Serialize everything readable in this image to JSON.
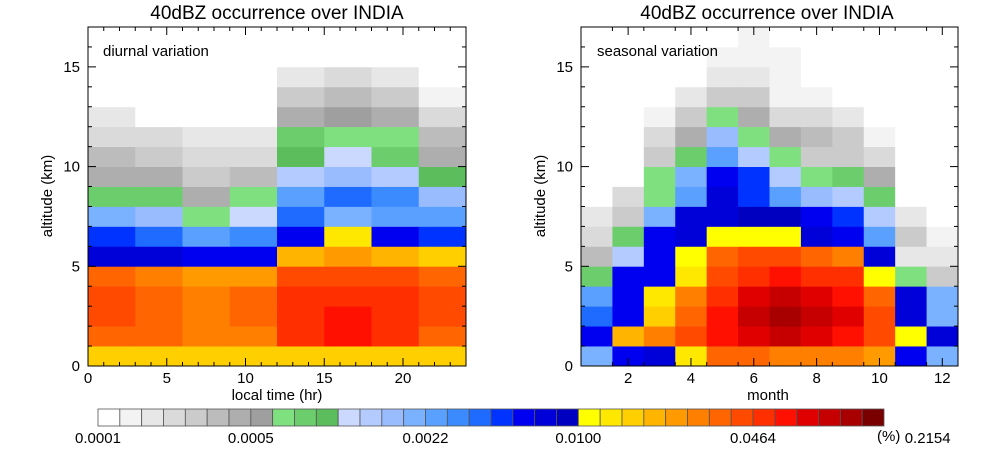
{
  "colorbar": {
    "colors": [
      "#ffffff",
      "#f3f3f3",
      "#e7e7e7",
      "#dadada",
      "#cbcbcb",
      "#bcbcbc",
      "#aeaeae",
      "#9f9f9f",
      "#7fe07f",
      "#6ccd6c",
      "#5cbd5c",
      "#ccd9ff",
      "#b3cbff",
      "#99bbff",
      "#7ab2ff",
      "#5aa0ff",
      "#3b8bff",
      "#1f6bff",
      "#0033ff",
      "#0000f0",
      "#0000d8",
      "#0000c0",
      "#ffff00",
      "#ffe800",
      "#ffcf00",
      "#ffb400",
      "#ff9a00",
      "#ff7f00",
      "#ff6500",
      "#ff4a00",
      "#ff2f00",
      "#ff1000",
      "#e10000",
      "#c60000",
      "#a80000",
      "#7a0000"
    ],
    "tick_labels": [
      "0.0001",
      "0.0005",
      "0.0022",
      "0.0100",
      "0.0464",
      "0.2154"
    ],
    "tick_indices": [
      0,
      7,
      15,
      22,
      30,
      38
    ],
    "unit": "(%)"
  },
  "chart_data": [
    {
      "type": "heatmap",
      "title": "40dBZ occurrence over INDIA",
      "annotation": "diurnal variation",
      "xlabel": "local time (hr)",
      "ylabel": "altitude (km)",
      "xlim": [
        0,
        24
      ],
      "ylim": [
        0,
        17
      ],
      "xticks": [
        0,
        5,
        10,
        15,
        20
      ],
      "yticks": [
        0,
        5,
        10,
        15
      ],
      "x_edges": [
        0,
        3,
        6,
        9,
        12,
        15,
        18,
        21,
        24
      ],
      "y_edges": [
        0,
        1,
        2,
        3,
        4,
        5,
        6,
        7,
        8,
        9,
        10,
        11,
        12,
        13,
        14,
        15,
        16,
        17
      ],
      "color_index": [
        [
          24,
          24,
          24,
          24,
          24,
          24,
          24,
          24
        ],
        [
          28,
          28,
          27,
          27,
          30,
          31,
          30,
          28
        ],
        [
          29,
          28,
          27,
          28,
          30,
          31,
          30,
          29
        ],
        [
          29,
          28,
          27,
          28,
          30,
          30,
          30,
          29
        ],
        [
          28,
          27,
          26,
          26,
          29,
          29,
          29,
          28
        ],
        [
          20,
          20,
          19,
          19,
          25,
          26,
          25,
          24
        ],
        [
          18,
          17,
          15,
          16,
          19,
          23,
          19,
          18
        ],
        [
          14,
          13,
          8,
          11,
          17,
          14,
          15,
          15
        ],
        [
          9,
          9,
          6,
          8,
          15,
          17,
          16,
          13
        ],
        [
          6,
          6,
          4,
          5,
          12,
          13,
          12,
          10
        ],
        [
          5,
          4,
          3,
          3,
          10,
          11,
          9,
          6
        ],
        [
          3,
          3,
          2,
          2,
          9,
          8,
          8,
          5
        ],
        [
          2,
          0,
          0,
          0,
          6,
          7,
          6,
          3
        ],
        [
          0,
          0,
          0,
          0,
          4,
          5,
          4,
          1
        ],
        [
          0,
          0,
          0,
          0,
          2,
          3,
          2,
          0
        ],
        [
          0,
          0,
          0,
          0,
          0,
          0,
          0,
          0
        ],
        [
          0,
          0,
          0,
          0,
          0,
          0,
          0,
          0
        ]
      ]
    },
    {
      "type": "heatmap",
      "title": "40dBZ occurrence over INDIA",
      "annotation": "seasonal variation",
      "xlabel": "month",
      "ylabel": "altitude (km)",
      "xlim": [
        0.5,
        12.5
      ],
      "ylim": [
        0,
        17
      ],
      "xticks": [
        2,
        4,
        6,
        8,
        10,
        12
      ],
      "yticks": [
        0,
        5,
        10,
        15
      ],
      "x_edges": [
        0.5,
        1.5,
        2.5,
        3.5,
        4.5,
        5.5,
        6.5,
        7.5,
        8.5,
        9.5,
        10.5,
        11.5,
        12.5
      ],
      "y_edges": [
        0,
        1,
        2,
        3,
        4,
        5,
        6,
        7,
        8,
        9,
        10,
        11,
        12,
        13,
        14,
        15,
        16,
        17
      ],
      "color_index": [
        [
          14,
          19,
          20,
          23,
          28,
          28,
          27,
          27,
          27,
          26,
          19,
          14
        ],
        [
          19,
          25,
          27,
          29,
          31,
          32,
          33,
          32,
          31,
          29,
          22,
          20
        ],
        [
          17,
          19,
          24,
          28,
          31,
          33,
          34,
          33,
          32,
          29,
          20,
          14
        ],
        [
          15,
          19,
          23,
          27,
          30,
          32,
          33,
          32,
          31,
          28,
          20,
          14
        ],
        [
          9,
          19,
          19,
          23,
          29,
          30,
          31,
          30,
          30,
          22,
          8,
          4
        ],
        [
          5,
          12,
          19,
          22,
          28,
          29,
          29,
          28,
          27,
          20,
          2,
          2
        ],
        [
          3,
          9,
          19,
          20,
          22,
          22,
          22,
          20,
          19,
          15,
          4,
          1
        ],
        [
          2,
          4,
          14,
          20,
          20,
          21,
          21,
          19,
          18,
          12,
          2,
          0
        ],
        [
          0,
          3,
          8,
          15,
          20,
          18,
          15,
          13,
          12,
          9,
          0,
          0
        ],
        [
          0,
          0,
          8,
          14,
          19,
          18,
          12,
          8,
          9,
          6,
          0,
          0
        ],
        [
          0,
          0,
          4,
          9,
          15,
          12,
          8,
          4,
          4,
          3,
          0,
          0
        ],
        [
          0,
          0,
          3,
          6,
          13,
          8,
          6,
          5,
          4,
          1,
          0,
          0
        ],
        [
          0,
          0,
          1,
          4,
          8,
          6,
          3,
          3,
          2,
          0,
          0,
          0
        ],
        [
          0,
          0,
          0,
          2,
          4,
          4,
          1,
          1,
          0,
          0,
          0,
          0
        ],
        [
          0,
          0,
          0,
          0,
          2,
          2,
          1,
          0,
          0,
          0,
          0,
          0
        ],
        [
          0,
          0,
          0,
          0,
          1,
          1,
          1,
          0,
          0,
          0,
          0,
          0
        ],
        [
          0,
          0,
          0,
          0,
          0,
          1,
          0,
          0,
          0,
          0,
          0,
          0
        ]
      ]
    }
  ]
}
